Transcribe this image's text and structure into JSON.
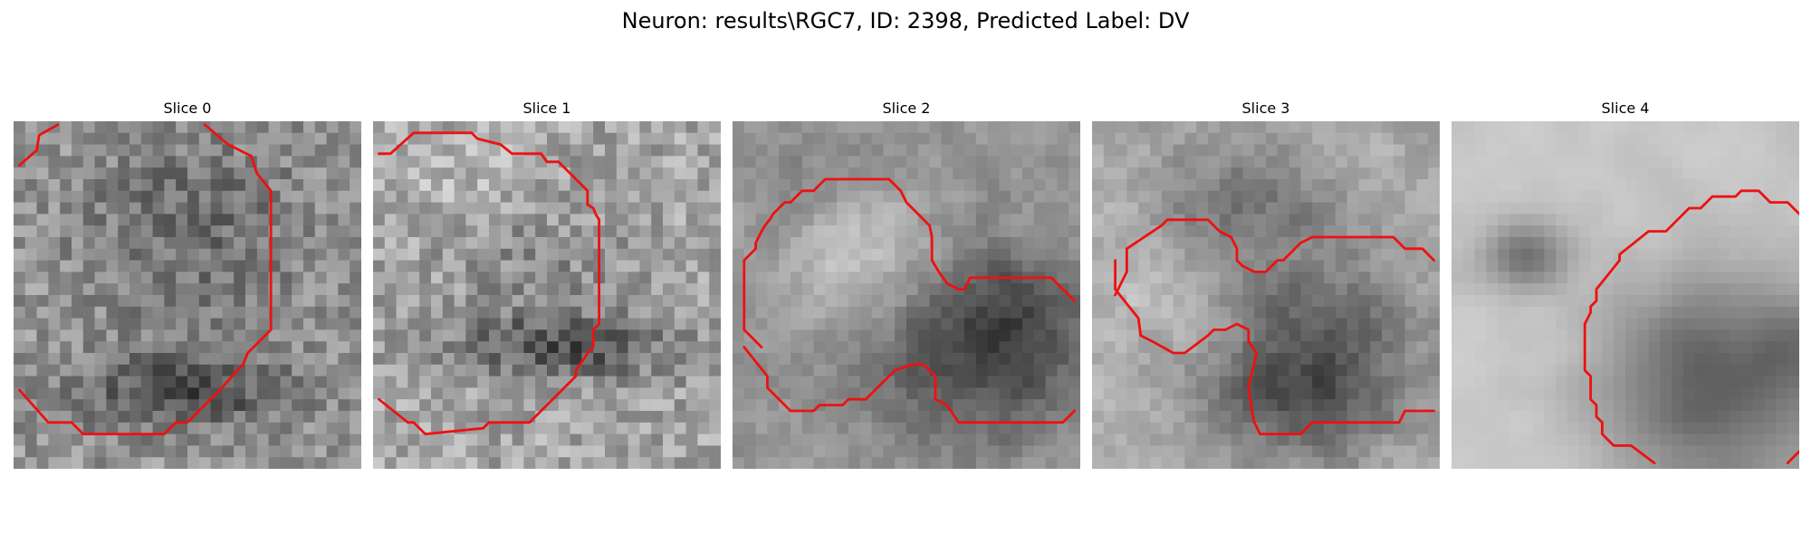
{
  "figure": {
    "title": "Neuron: results\\RGC7, ID: 2398, Predicted Label: DV"
  },
  "contour_color": "#ee1111",
  "grid_size": 30,
  "slices": [
    {
      "label": "Slice 0",
      "seed": 17,
      "smooth": 0,
      "noise": 70,
      "base": 150,
      "blobs": [
        [
          15,
          12,
          9,
          10,
          -30
        ],
        [
          14,
          23,
          9,
          3,
          -70
        ],
        [
          15,
          6,
          10,
          5,
          -20
        ]
      ],
      "contours": [
        [
          [
            0.5,
            3.8
          ],
          [
            2,
            2.5
          ],
          [
            2.2,
            1.2
          ],
          [
            3.8,
            0.3
          ]
        ],
        [
          [
            16.5,
            0.3
          ],
          [
            18.5,
            2
          ],
          [
            20.5,
            3
          ],
          [
            21,
            4.5
          ],
          [
            22.2,
            6
          ],
          [
            22.2,
            18
          ],
          [
            20.2,
            20
          ],
          [
            19.8,
            21
          ],
          [
            17.5,
            23.5
          ],
          [
            15,
            26
          ],
          [
            14,
            26
          ],
          [
            13,
            27
          ],
          [
            6,
            27
          ],
          [
            5,
            26
          ],
          [
            3,
            26
          ],
          [
            0.5,
            23.2
          ]
        ]
      ]
    },
    {
      "label": "Slice 1",
      "seed": 41,
      "smooth": 0,
      "noise": 75,
      "base": 165,
      "blobs": [
        [
          16,
          19,
          10,
          3,
          -80
        ],
        [
          14,
          12,
          8,
          6,
          -25
        ],
        [
          7,
          4,
          6,
          4,
          20
        ]
      ],
      "contours": [
        [
          [
            0.5,
            2.8
          ],
          [
            1.5,
            2.8
          ],
          [
            3.5,
            1
          ],
          [
            8.5,
            1
          ],
          [
            9,
            1.5
          ],
          [
            11,
            2
          ],
          [
            12,
            2.8
          ],
          [
            14.5,
            2.8
          ],
          [
            15,
            3.5
          ],
          [
            16,
            3.5
          ],
          [
            18.5,
            6
          ],
          [
            18.5,
            7.2
          ],
          [
            19,
            7.5
          ],
          [
            19.2,
            8
          ],
          [
            19.5,
            8.5
          ],
          [
            19.5,
            17.5
          ],
          [
            19,
            18
          ],
          [
            19,
            19.5
          ],
          [
            18.5,
            20
          ],
          [
            18.2,
            20.5
          ],
          [
            17.5,
            21.5
          ],
          [
            17.5,
            22
          ],
          [
            13.5,
            26
          ],
          [
            10,
            26
          ],
          [
            9.5,
            26.5
          ],
          [
            4.5,
            27
          ],
          [
            3.5,
            26
          ],
          [
            3,
            26
          ],
          [
            0.5,
            24
          ]
        ]
      ]
    },
    {
      "label": "Slice 2",
      "seed": 73,
      "smooth": 0.5,
      "noise": 60,
      "base": 150,
      "blobs": [
        [
          10,
          11,
          6,
          5,
          50
        ],
        [
          21,
          20,
          9,
          7,
          -75
        ],
        [
          24,
          15,
          6,
          5,
          -40
        ],
        [
          6,
          5,
          5,
          4,
          -20
        ]
      ],
      "contours": [
        [
          [
            2.5,
            19.5
          ],
          [
            1,
            18
          ],
          [
            1,
            12
          ],
          [
            2,
            11
          ],
          [
            2,
            10.5
          ],
          [
            2.5,
            9.5
          ],
          [
            2.8,
            9
          ],
          [
            3.2,
            8.5
          ],
          [
            3.5,
            8
          ],
          [
            4.5,
            7
          ],
          [
            5,
            7
          ],
          [
            6,
            6
          ],
          [
            7,
            6
          ],
          [
            8,
            5
          ],
          [
            13.5,
            5
          ],
          [
            14.5,
            6
          ],
          [
            15,
            7
          ],
          [
            16,
            8
          ],
          [
            17,
            9
          ],
          [
            17.2,
            10
          ],
          [
            17.2,
            12
          ],
          [
            17.8,
            13
          ],
          [
            18.5,
            14
          ],
          [
            19.5,
            14.5
          ],
          [
            20,
            14.5
          ],
          [
            20.5,
            13.5
          ],
          [
            27.5,
            13.5
          ],
          [
            28.2,
            14.2
          ],
          [
            29.5,
            15.5
          ]
        ],
        [
          [
            1,
            19.5
          ],
          [
            3,
            22
          ],
          [
            3,
            23
          ],
          [
            5,
            25
          ],
          [
            7,
            25
          ],
          [
            7.5,
            24.5
          ],
          [
            9.5,
            24.5
          ],
          [
            10,
            24
          ],
          [
            11.5,
            24
          ],
          [
            12,
            23.5
          ],
          [
            14,
            21.5
          ],
          [
            15.5,
            21
          ],
          [
            16.5,
            21
          ],
          [
            17.5,
            22
          ],
          [
            17.5,
            24
          ],
          [
            18.5,
            24.5
          ],
          [
            19.5,
            26
          ],
          [
            28.5,
            26
          ],
          [
            29.5,
            25
          ]
        ]
      ]
    },
    {
      "label": "Slice 3",
      "seed": 97,
      "smooth": 0.5,
      "noise": 65,
      "base": 175,
      "blobs": [
        [
          19,
          19,
          9,
          9,
          -80
        ],
        [
          12,
          6,
          7,
          5,
          -60
        ],
        [
          6,
          15,
          4,
          4,
          20
        ],
        [
          16,
          24,
          7,
          4,
          -50
        ]
      ],
      "contours": [
        [
          [
            2,
            12
          ],
          [
            2,
            14.5
          ],
          [
            4,
            17
          ],
          [
            4.2,
            18.5
          ],
          [
            5.2,
            19
          ],
          [
            7,
            20
          ],
          [
            8,
            20
          ],
          [
            10,
            18.5
          ],
          [
            10.5,
            18
          ],
          [
            11.5,
            18
          ],
          [
            12.5,
            17.5
          ],
          [
            13.5,
            18
          ],
          [
            13.5,
            19
          ],
          [
            14.2,
            20
          ],
          [
            13.5,
            23
          ],
          [
            13.8,
            25
          ],
          [
            14,
            26
          ],
          [
            14.5,
            27
          ],
          [
            18,
            27
          ],
          [
            19,
            26
          ],
          [
            21,
            26
          ],
          [
            26.5,
            26
          ],
          [
            27,
            25
          ],
          [
            29.5,
            25
          ]
        ],
        [
          [
            2,
            15
          ],
          [
            3,
            13
          ],
          [
            3,
            11
          ],
          [
            6,
            9
          ],
          [
            6.5,
            8.5
          ],
          [
            9,
            8.5
          ],
          [
            10,
            8.5
          ],
          [
            10.5,
            9
          ],
          [
            11,
            9.5
          ],
          [
            12,
            10
          ],
          [
            12.5,
            11
          ],
          [
            12.5,
            12
          ],
          [
            13,
            12.5
          ],
          [
            14,
            13
          ],
          [
            15,
            13
          ],
          [
            16,
            12
          ],
          [
            16.5,
            12
          ],
          [
            18,
            10.5
          ],
          [
            19,
            10
          ],
          [
            26,
            10
          ],
          [
            27,
            11
          ],
          [
            28.5,
            11
          ],
          [
            29.5,
            12
          ]
        ]
      ]
    },
    {
      "label": "Slice 4",
      "seed": 131,
      "smooth": 1.5,
      "noise": 35,
      "base": 200,
      "blobs": [
        [
          22,
          22,
          9,
          9,
          -110
        ],
        [
          6,
          11,
          3.5,
          2.5,
          -110
        ],
        [
          28,
          19,
          2,
          4,
          -40
        ]
      ],
      "contours": [
        [
          [
            29,
            29.5
          ],
          [
            30,
            28.5
          ]
        ],
        [
          [
            17.5,
            29.5
          ],
          [
            15.5,
            28
          ],
          [
            14,
            28
          ],
          [
            13,
            27
          ],
          [
            13,
            26
          ],
          [
            12.5,
            25.5
          ],
          [
            12.5,
            24.5
          ],
          [
            12,
            24
          ],
          [
            12,
            22
          ],
          [
            11.5,
            21.5
          ],
          [
            11.5,
            17.5
          ],
          [
            12,
            16.5
          ],
          [
            12,
            16
          ],
          [
            12.5,
            15.5
          ],
          [
            12.5,
            14.5
          ],
          [
            14.5,
            12
          ],
          [
            14.5,
            11.5
          ],
          [
            17,
            9.5
          ],
          [
            18.5,
            9.5
          ],
          [
            20.5,
            7.5
          ],
          [
            21.5,
            7.5
          ],
          [
            22.5,
            6.5
          ],
          [
            24.5,
            6.5
          ],
          [
            25,
            6
          ],
          [
            26.5,
            6
          ],
          [
            27.5,
            7
          ],
          [
            29,
            7
          ],
          [
            29.5,
            7.5
          ],
          [
            30,
            8
          ]
        ]
      ]
    }
  ]
}
